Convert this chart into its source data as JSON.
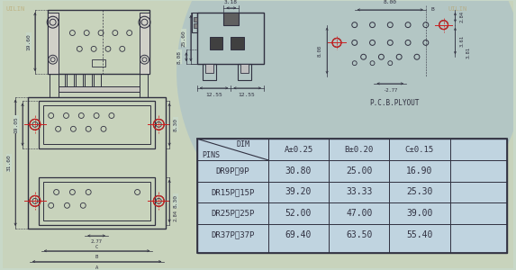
{
  "bg_color": "#c8d8c8",
  "bg_color2": "#a8c8d8",
  "line_color": "#303040",
  "red_color": "#cc2020",
  "table_bg": "#b8ccd8",
  "pcb_label": "P.C.B.PLYOUT",
  "table_rows": [
    [
      "DR9P对9P",
      "30.80",
      "25.00",
      "16.90"
    ],
    [
      "DR15P对15P",
      "39.20",
      "33.33",
      "25.30"
    ],
    [
      "DR25P对25P",
      "52.00",
      "47.00",
      "39.00"
    ],
    [
      "DR37P对37P",
      "69.40",
      "63.50",
      "55.40"
    ]
  ]
}
